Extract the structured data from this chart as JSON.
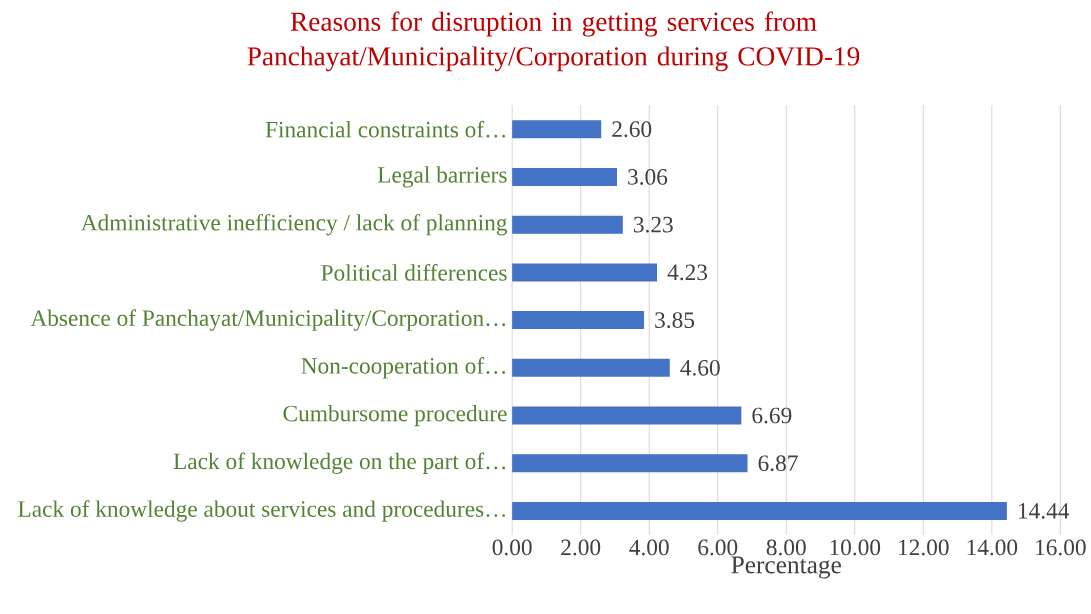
{
  "chart_data": {
    "type": "bar",
    "orientation": "horizontal",
    "title": "Reasons for disruption in getting services from Panchayat/Municipality/Corporation during COVID-19",
    "xlabel": "Percentage",
    "categories": [
      "Financial constraints of…",
      "Legal barriers",
      "Administrative inefficiency / lack of planning",
      "Political differences",
      "Absence of Panchayat/Municipality/Corporation…",
      "Non-cooperation of…",
      "Cumbursome procedure",
      "Lack of knowledge on the part of…",
      "Lack of knowledge about services and procedures…"
    ],
    "values": [
      2.6,
      3.06,
      3.23,
      4.23,
      3.85,
      4.6,
      6.69,
      6.87,
      14.44
    ],
    "value_labels": [
      "2.60",
      "3.06",
      "3.23",
      "4.23",
      "3.85",
      "4.60",
      "6.69",
      "6.87",
      "14.44"
    ],
    "color": "#4472c4",
    "xlim": [
      0,
      16
    ],
    "xticks": [
      {
        "value": 0,
        "label": "0.00"
      },
      {
        "value": 2,
        "label": "2.00"
      },
      {
        "value": 4,
        "label": "4.00"
      },
      {
        "value": 6,
        "label": "6.00"
      },
      {
        "value": 8,
        "label": "8.00"
      },
      {
        "value": 10,
        "label": "10.00"
      },
      {
        "value": 12,
        "label": "12.00"
      },
      {
        "value": 14,
        "label": "14.00"
      },
      {
        "value": 16,
        "label": "16.00"
      }
    ],
    "grid": "x"
  }
}
